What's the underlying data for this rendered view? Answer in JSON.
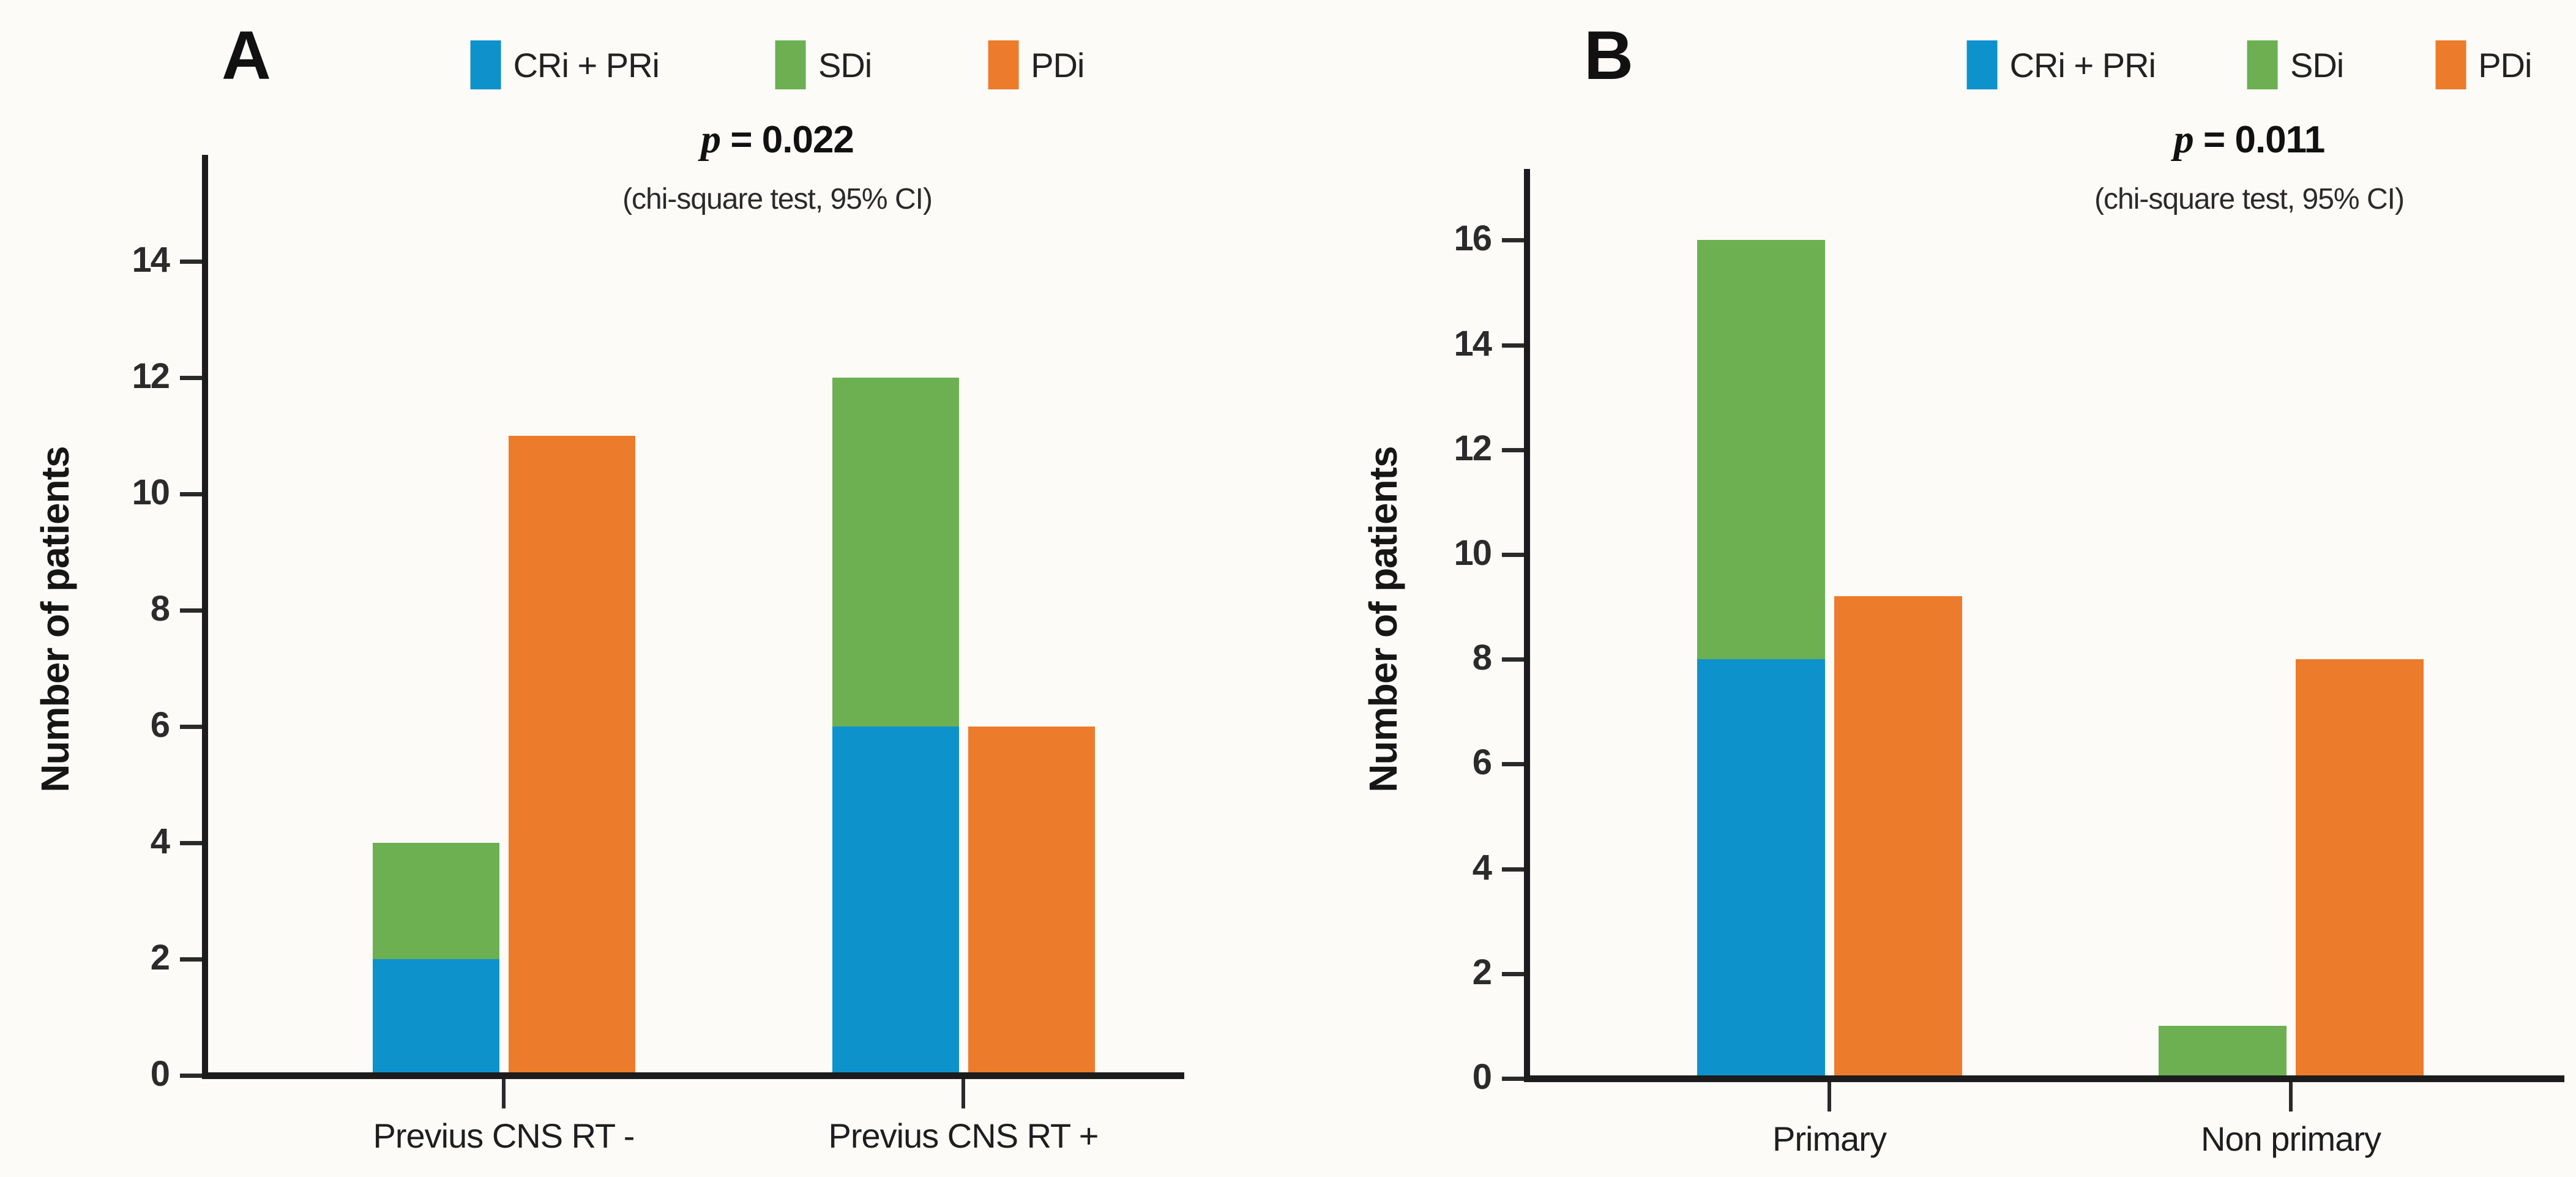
{
  "figure": {
    "background": "#fcfbf8",
    "colors": {
      "cri_pri": "#0e92cc",
      "sdi": "#6cb052",
      "pdi": "#ec7c2b",
      "axis": "#1c1c1c",
      "text": "#232323"
    },
    "legend": {
      "items": [
        {
          "label": "CRi + PRi",
          "color_key": "cri_pri"
        },
        {
          "label": "SDi",
          "color_key": "sdi"
        },
        {
          "label": "PDi",
          "color_key": "pdi"
        }
      ]
    },
    "panels": [
      {
        "letter": "A",
        "p_italic": "p",
        "p_rest": " = 0.022",
        "stat_note": "(chi-square test, 95% CI)",
        "ylabel": "Number of patients"
      },
      {
        "letter": "B",
        "p_italic": "p",
        "p_rest": " = 0.011",
        "stat_note": "(chi-square test, 95% CI)",
        "ylabel": "Number of patients"
      }
    ]
  },
  "chart_data": [
    {
      "panel": "A",
      "type": "bar",
      "title": "p = 0.022",
      "subtitle": "(chi-square test, 95% CI)",
      "categories": [
        "Previus CNS RT -",
        "Previus CNS RT +"
      ],
      "series": [
        {
          "name": "CRi + PRi",
          "role": "stack-base",
          "values": [
            2,
            6
          ]
        },
        {
          "name": "SDi",
          "role": "stack-top",
          "values": [
            2,
            6
          ],
          "stack_totals": [
            4,
            12
          ]
        },
        {
          "name": "PDi",
          "role": "grouped",
          "values": [
            11,
            6
          ]
        }
      ],
      "xlabel": "",
      "ylabel": "Number of patients",
      "ylim": [
        0,
        15.8
      ],
      "yticks": [
        0,
        2,
        4,
        6,
        8,
        10,
        12,
        14
      ],
      "legend_position": "top",
      "grid": false
    },
    {
      "panel": "B",
      "type": "bar",
      "title": "p = 0.011",
      "subtitle": "(chi-square test, 95% CI)",
      "categories": [
        "Primary",
        "Non primary"
      ],
      "series": [
        {
          "name": "CRi + PRi",
          "role": "stack-base",
          "values": [
            8,
            0
          ]
        },
        {
          "name": "SDi",
          "role": "stack-top",
          "values": [
            8,
            1
          ],
          "stack_totals": [
            16,
            1
          ]
        },
        {
          "name": "PDi",
          "role": "grouped",
          "values": [
            9.2,
            8
          ]
        }
      ],
      "xlabel": "",
      "ylabel": "Number of patients",
      "ylim": [
        0,
        17.3
      ],
      "yticks": [
        0,
        2,
        4,
        6,
        8,
        10,
        12,
        14,
        16
      ],
      "legend_position": "top",
      "grid": false
    }
  ]
}
